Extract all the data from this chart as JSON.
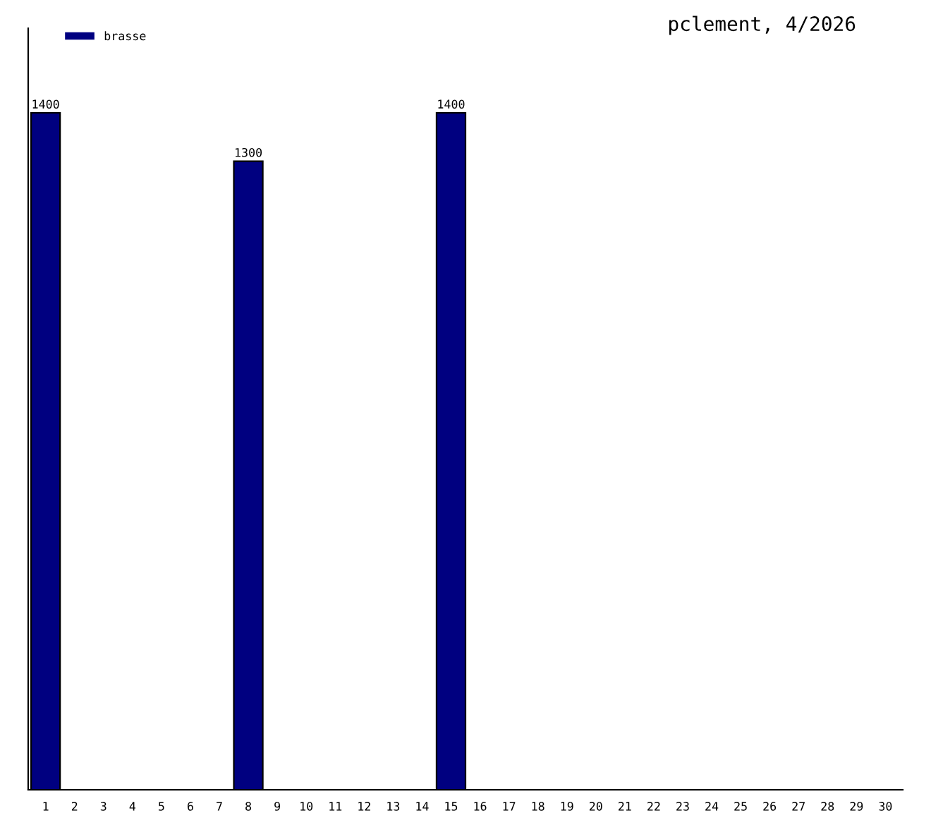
{
  "chart_data": {
    "type": "bar",
    "title": "pclement, 4/2026",
    "categories": [
      "1",
      "2",
      "3",
      "4",
      "5",
      "6",
      "7",
      "8",
      "9",
      "10",
      "11",
      "12",
      "13",
      "14",
      "15",
      "16",
      "17",
      "18",
      "19",
      "20",
      "21",
      "22",
      "23",
      "24",
      "25",
      "26",
      "27",
      "28",
      "29",
      "30"
    ],
    "series": [
      {
        "name": "brasse",
        "color": "#000080",
        "values": [
          1400,
          null,
          null,
          null,
          null,
          null,
          null,
          1300,
          null,
          null,
          null,
          null,
          null,
          null,
          1400,
          null,
          null,
          null,
          null,
          null,
          null,
          null,
          null,
          null,
          null,
          null,
          null,
          null,
          null,
          null
        ]
      }
    ],
    "data_labels": true,
    "legend": "top left",
    "grid": false,
    "tick_labels": "x"
  }
}
